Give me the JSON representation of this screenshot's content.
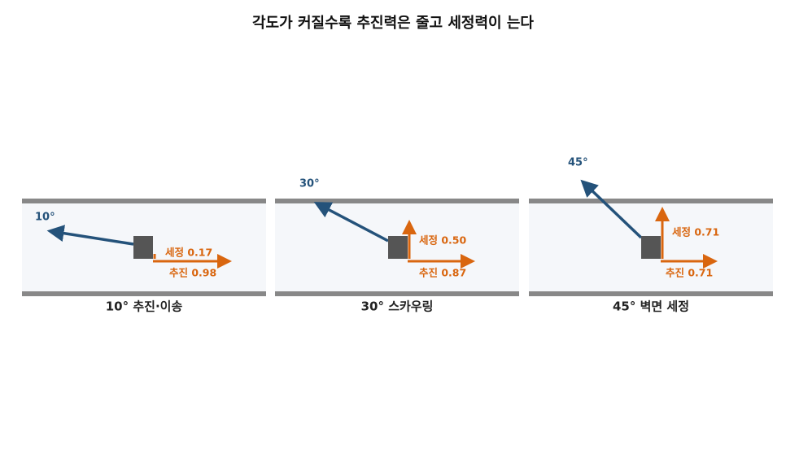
{
  "title": "각도가 커질수록 추진력은 줄고 세정력이 는다",
  "panels": [
    {
      "angle_label": "10°",
      "wash_label": "세정 0.17",
      "thrust_label": "추진 0.98",
      "caption": "10° 추진·이송"
    },
    {
      "angle_label": "30°",
      "wash_label": "세정 0.50",
      "thrust_label": "추진 0.87",
      "caption": "30° 스카우링"
    },
    {
      "angle_label": "45°",
      "wash_label": "세정 0.71",
      "thrust_label": "추진 0.71",
      "caption": "45° 벽면 세정"
    }
  ]
}
